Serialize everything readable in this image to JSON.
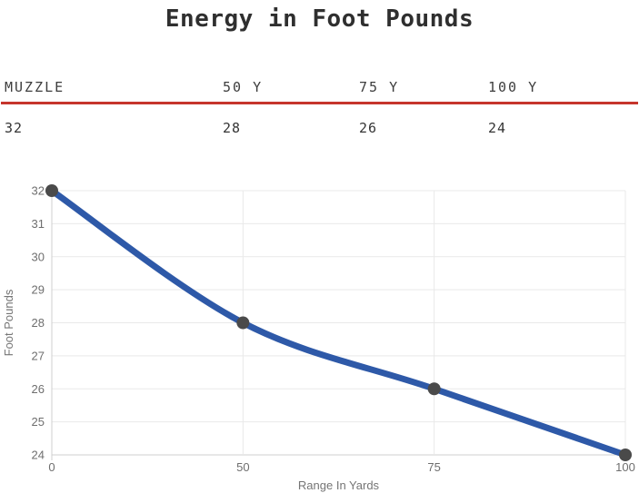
{
  "title": "Energy in Foot Pounds",
  "table": {
    "headers": [
      "MUZZLE",
      "50 Y",
      "75 Y",
      "100 Y"
    ],
    "values": [
      "32",
      "28",
      "26",
      "24"
    ],
    "divider_color": "#c6352c"
  },
  "chart_data": {
    "type": "line",
    "title": "Energy in Foot Pounds",
    "categories": [
      "0",
      "50",
      "75",
      "100"
    ],
    "values": [
      32,
      28,
      26,
      24
    ],
    "xlabel": "Range In Yards",
    "ylabel": "Foot Pounds",
    "ylim": [
      24,
      32
    ],
    "y_ticks": [
      24,
      25,
      26,
      27,
      28,
      29,
      30,
      31,
      32
    ],
    "grid": true,
    "legend": "none",
    "curve": "smooth",
    "line_color": "#2e59a8",
    "point_color": "#4a4a4a",
    "grid_color": "#e9e9e9",
    "axis_line_color": "#cfcfcf"
  }
}
